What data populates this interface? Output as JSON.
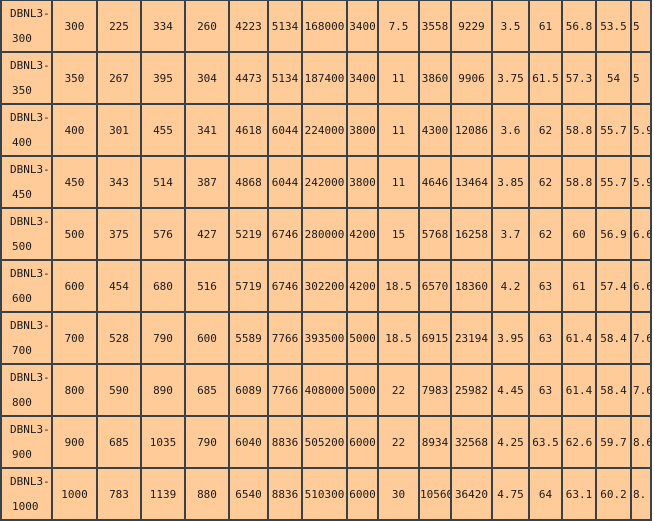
{
  "table": {
    "rows": [
      {
        "model": [
          "DBNL3-",
          "300"
        ],
        "values": [
          "300",
          "225",
          "334",
          "260",
          "4223",
          "5134",
          "168000",
          "3400",
          "7.5",
          "3558",
          "9229",
          "3.5",
          "61",
          "56.8",
          "53.5",
          "5"
        ]
      },
      {
        "model": [
          "DBNL3-",
          "350"
        ],
        "values": [
          "350",
          "267",
          "395",
          "304",
          "4473",
          "5134",
          "187400",
          "3400",
          "11",
          "3860",
          "9906",
          "3.75",
          "61.5",
          "57.3",
          "54",
          "5"
        ]
      },
      {
        "model": [
          "DBNL3-",
          "400"
        ],
        "values": [
          "400",
          "301",
          "455",
          "341",
          "4618",
          "6044",
          "224000",
          "3800",
          "11",
          "4300",
          "12086",
          "3.6",
          "62",
          "58.8",
          "55.7",
          "5.9"
        ]
      },
      {
        "model": [
          "DBNL3-",
          "450"
        ],
        "values": [
          "450",
          "343",
          "514",
          "387",
          "4868",
          "6044",
          "242000",
          "3800",
          "11",
          "4646",
          "13464",
          "3.85",
          "62",
          "58.8",
          "55.7",
          "5.9"
        ]
      },
      {
        "model": [
          "DBNL3-",
          "500"
        ],
        "values": [
          "500",
          "375",
          "576",
          "427",
          "5219",
          "6746",
          "280000",
          "4200",
          "15",
          "5768",
          "16258",
          "3.7",
          "62",
          "60",
          "56.9",
          "6.6"
        ]
      },
      {
        "model": [
          "DBNL3-",
          "600"
        ],
        "values": [
          "600",
          "454",
          "680",
          "516",
          "5719",
          "6746",
          "302200",
          "4200",
          "18.5",
          "6570",
          "18360",
          "4.2",
          "63",
          "61",
          "57.4",
          "6.6"
        ]
      },
      {
        "model": [
          "DBNL3-",
          "700"
        ],
        "values": [
          "700",
          "528",
          "790",
          "600",
          "5589",
          "7766",
          "393500",
          "5000",
          "18.5",
          "6915",
          "23194",
          "3.95",
          "63",
          "61.4",
          "58.4",
          "7.6"
        ]
      },
      {
        "model": [
          "DBNL3-",
          "800"
        ],
        "values": [
          "800",
          "590",
          "890",
          "685",
          "6089",
          "7766",
          "408000",
          "5000",
          "22",
          "7983",
          "25982",
          "4.45",
          "63",
          "61.4",
          "58.4",
          "7.6"
        ]
      },
      {
        "model": [
          "DBNL3-",
          "900"
        ],
        "values": [
          "900",
          "685",
          "1035",
          "790",
          "6040",
          "8836",
          "505200",
          "6000",
          "22",
          "8934",
          "32568",
          "4.25",
          "63.5",
          "62.6",
          "59.7",
          "8.6"
        ]
      },
      {
        "model": [
          "DBNL3-",
          "1000"
        ],
        "values": [
          "1000",
          "783",
          "1139",
          "880",
          "6540",
          "8836",
          "510300",
          "6000",
          "30",
          "10560",
          "36420",
          "4.75",
          "64",
          "63.1",
          "60.2",
          "8."
        ]
      }
    ],
    "colors": {
      "cell_background": "#FFCC99",
      "border": "#36424c"
    }
  }
}
